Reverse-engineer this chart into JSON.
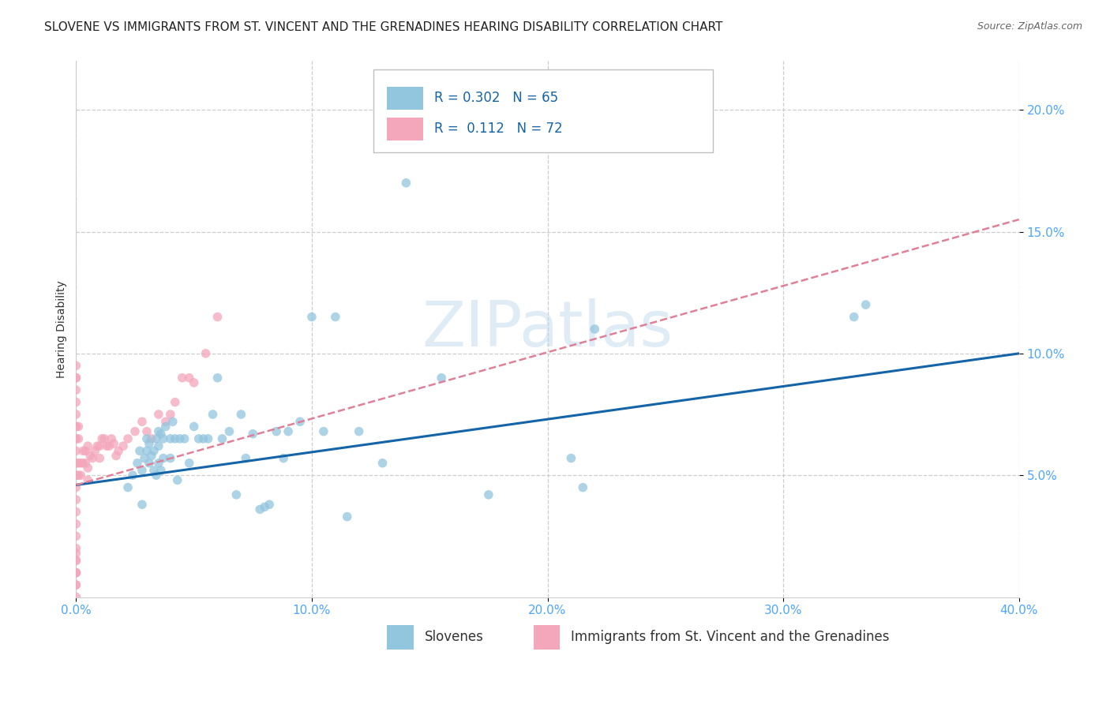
{
  "title": "SLOVENE VS IMMIGRANTS FROM ST. VINCENT AND THE GRENADINES HEARING DISABILITY CORRELATION CHART",
  "source": "Source: ZipAtlas.com",
  "ylabel": "Hearing Disability",
  "xlim": [
    0.0,
    0.4
  ],
  "ylim": [
    0.0,
    0.22
  ],
  "xticks": [
    0.0,
    0.1,
    0.2,
    0.3,
    0.4
  ],
  "yticks": [
    0.05,
    0.1,
    0.15,
    0.2
  ],
  "xticklabels": [
    "0.0%",
    "10.0%",
    "20.0%",
    "30.0%",
    "40.0%"
  ],
  "yticklabels": [
    "5.0%",
    "10.0%",
    "15.0%",
    "20.0%"
  ],
  "watermark": "ZIPatlas",
  "legend_label1": "Slovenes",
  "legend_label2": "Immigrants from St. Vincent and the Grenadines",
  "R1": "0.302",
  "N1": "65",
  "R2": "0.112",
  "N2": "72",
  "color_blue": "#92c5de",
  "color_pink": "#f4a6bb",
  "line_blue": "#1464a8",
  "line_pink_dashed": "#e08098",
  "title_fontsize": 11,
  "axis_label_fontsize": 10,
  "tick_fontsize": 11,
  "legend_fontsize": 12,
  "blue_scatter_x": [
    0.022,
    0.024,
    0.026,
    0.027,
    0.028,
    0.028,
    0.029,
    0.03,
    0.03,
    0.031,
    0.031,
    0.032,
    0.033,
    0.033,
    0.034,
    0.034,
    0.035,
    0.035,
    0.035,
    0.036,
    0.036,
    0.037,
    0.037,
    0.038,
    0.04,
    0.04,
    0.041,
    0.042,
    0.043,
    0.044,
    0.046,
    0.048,
    0.05,
    0.052,
    0.054,
    0.056,
    0.058,
    0.06,
    0.062,
    0.065,
    0.068,
    0.07,
    0.072,
    0.075,
    0.078,
    0.08,
    0.082,
    0.085,
    0.088,
    0.09,
    0.095,
    0.1,
    0.105,
    0.11,
    0.115,
    0.12,
    0.13,
    0.14,
    0.155,
    0.175,
    0.21,
    0.215,
    0.22,
    0.33,
    0.335
  ],
  "blue_scatter_y": [
    0.045,
    0.05,
    0.055,
    0.06,
    0.038,
    0.052,
    0.057,
    0.06,
    0.065,
    0.055,
    0.063,
    0.058,
    0.052,
    0.06,
    0.05,
    0.065,
    0.055,
    0.062,
    0.068,
    0.052,
    0.067,
    0.057,
    0.065,
    0.07,
    0.057,
    0.065,
    0.072,
    0.065,
    0.048,
    0.065,
    0.065,
    0.055,
    0.07,
    0.065,
    0.065,
    0.065,
    0.075,
    0.09,
    0.065,
    0.068,
    0.042,
    0.075,
    0.057,
    0.067,
    0.036,
    0.037,
    0.038,
    0.068,
    0.057,
    0.068,
    0.072,
    0.115,
    0.068,
    0.115,
    0.033,
    0.068,
    0.055,
    0.17,
    0.09,
    0.042,
    0.057,
    0.045,
    0.11,
    0.115,
    0.12
  ],
  "pink_scatter_x": [
    0.0,
    0.0,
    0.0,
    0.0,
    0.0,
    0.0,
    0.0,
    0.0,
    0.0,
    0.0,
    0.0,
    0.0,
    0.0,
    0.0,
    0.0,
    0.0,
    0.0,
    0.0,
    0.0,
    0.0,
    0.0,
    0.0,
    0.0,
    0.0,
    0.0,
    0.0,
    0.0,
    0.0,
    0.0,
    0.0,
    0.001,
    0.001,
    0.001,
    0.001,
    0.002,
    0.002,
    0.003,
    0.003,
    0.004,
    0.004,
    0.005,
    0.005,
    0.005,
    0.006,
    0.007,
    0.008,
    0.009,
    0.01,
    0.01,
    0.011,
    0.012,
    0.013,
    0.014,
    0.015,
    0.016,
    0.017,
    0.018,
    0.02,
    0.022,
    0.025,
    0.028,
    0.03,
    0.032,
    0.035,
    0.038,
    0.04,
    0.042,
    0.045,
    0.048,
    0.05,
    0.055,
    0.06
  ],
  "pink_scatter_y": [
    0.0,
    0.005,
    0.005,
    0.01,
    0.01,
    0.01,
    0.015,
    0.015,
    0.018,
    0.02,
    0.025,
    0.03,
    0.035,
    0.04,
    0.045,
    0.05,
    0.05,
    0.055,
    0.055,
    0.06,
    0.065,
    0.065,
    0.07,
    0.07,
    0.075,
    0.08,
    0.085,
    0.09,
    0.09,
    0.095,
    0.05,
    0.055,
    0.065,
    0.07,
    0.05,
    0.055,
    0.055,
    0.06,
    0.055,
    0.06,
    0.048,
    0.053,
    0.062,
    0.058,
    0.057,
    0.06,
    0.062,
    0.057,
    0.062,
    0.065,
    0.065,
    0.062,
    0.062,
    0.065,
    0.063,
    0.058,
    0.06,
    0.062,
    0.065,
    0.068,
    0.072,
    0.068,
    0.065,
    0.075,
    0.072,
    0.075,
    0.08,
    0.09,
    0.09,
    0.088,
    0.1,
    0.115
  ],
  "blue_line_x0": 0.0,
  "blue_line_x1": 0.4,
  "blue_line_y0": 0.046,
  "blue_line_y1": 0.1,
  "pink_line_x0": 0.0,
  "pink_line_x1": 0.4,
  "pink_line_y0": 0.046,
  "pink_line_y1": 0.155
}
